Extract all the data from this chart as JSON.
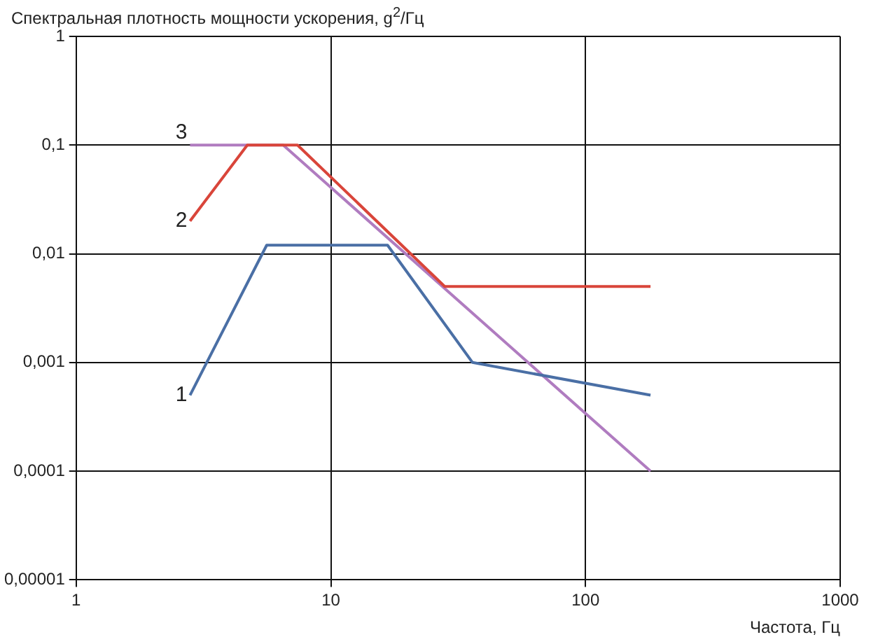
{
  "chart_data": {
    "type": "line",
    "ylabel": "Спектральная плотность мощности ускорения, g$^{2}$/Гц",
    "xlabel": "Частота, Гц",
    "log": "xy",
    "grid": true,
    "legend": false,
    "marker": "none",
    "line_style": "solid",
    "xlim": [
      1,
      1000
    ],
    "xticks": [
      1,
      10,
      100,
      1000
    ],
    "ylim": [
      1e-05,
      1
    ],
    "yticks": [
      {
        "value": 1,
        "label": "1"
      },
      {
        "value": 0.1,
        "label": "0,1"
      },
      {
        "value": 0.01,
        "label": "0,01"
      },
      {
        "value": 0.001,
        "label": "0,001"
      },
      {
        "value": 0.0001,
        "label": "0,0001"
      },
      {
        "value": 1e-05,
        "label": "0,00001"
      }
    ],
    "series": [
      {
        "name": "1",
        "color": "#4a6fa5",
        "x": [
          2.8,
          5.6,
          16.7,
          36,
          180
        ],
        "values": [
          0.0005,
          0.012,
          0.012,
          0.001,
          0.0005
        ]
      },
      {
        "name": "2",
        "color": "#d9453a",
        "x": [
          2.8,
          4.7,
          7.4,
          28,
          180
        ],
        "values": [
          0.02,
          0.1,
          0.1,
          0.005,
          0.005
        ]
      },
      {
        "name": "3",
        "color": "#b07cc0",
        "x": [
          2.8,
          6.5,
          180
        ],
        "values": [
          0.1,
          0.1,
          0.0001
        ]
      }
    ]
  }
}
